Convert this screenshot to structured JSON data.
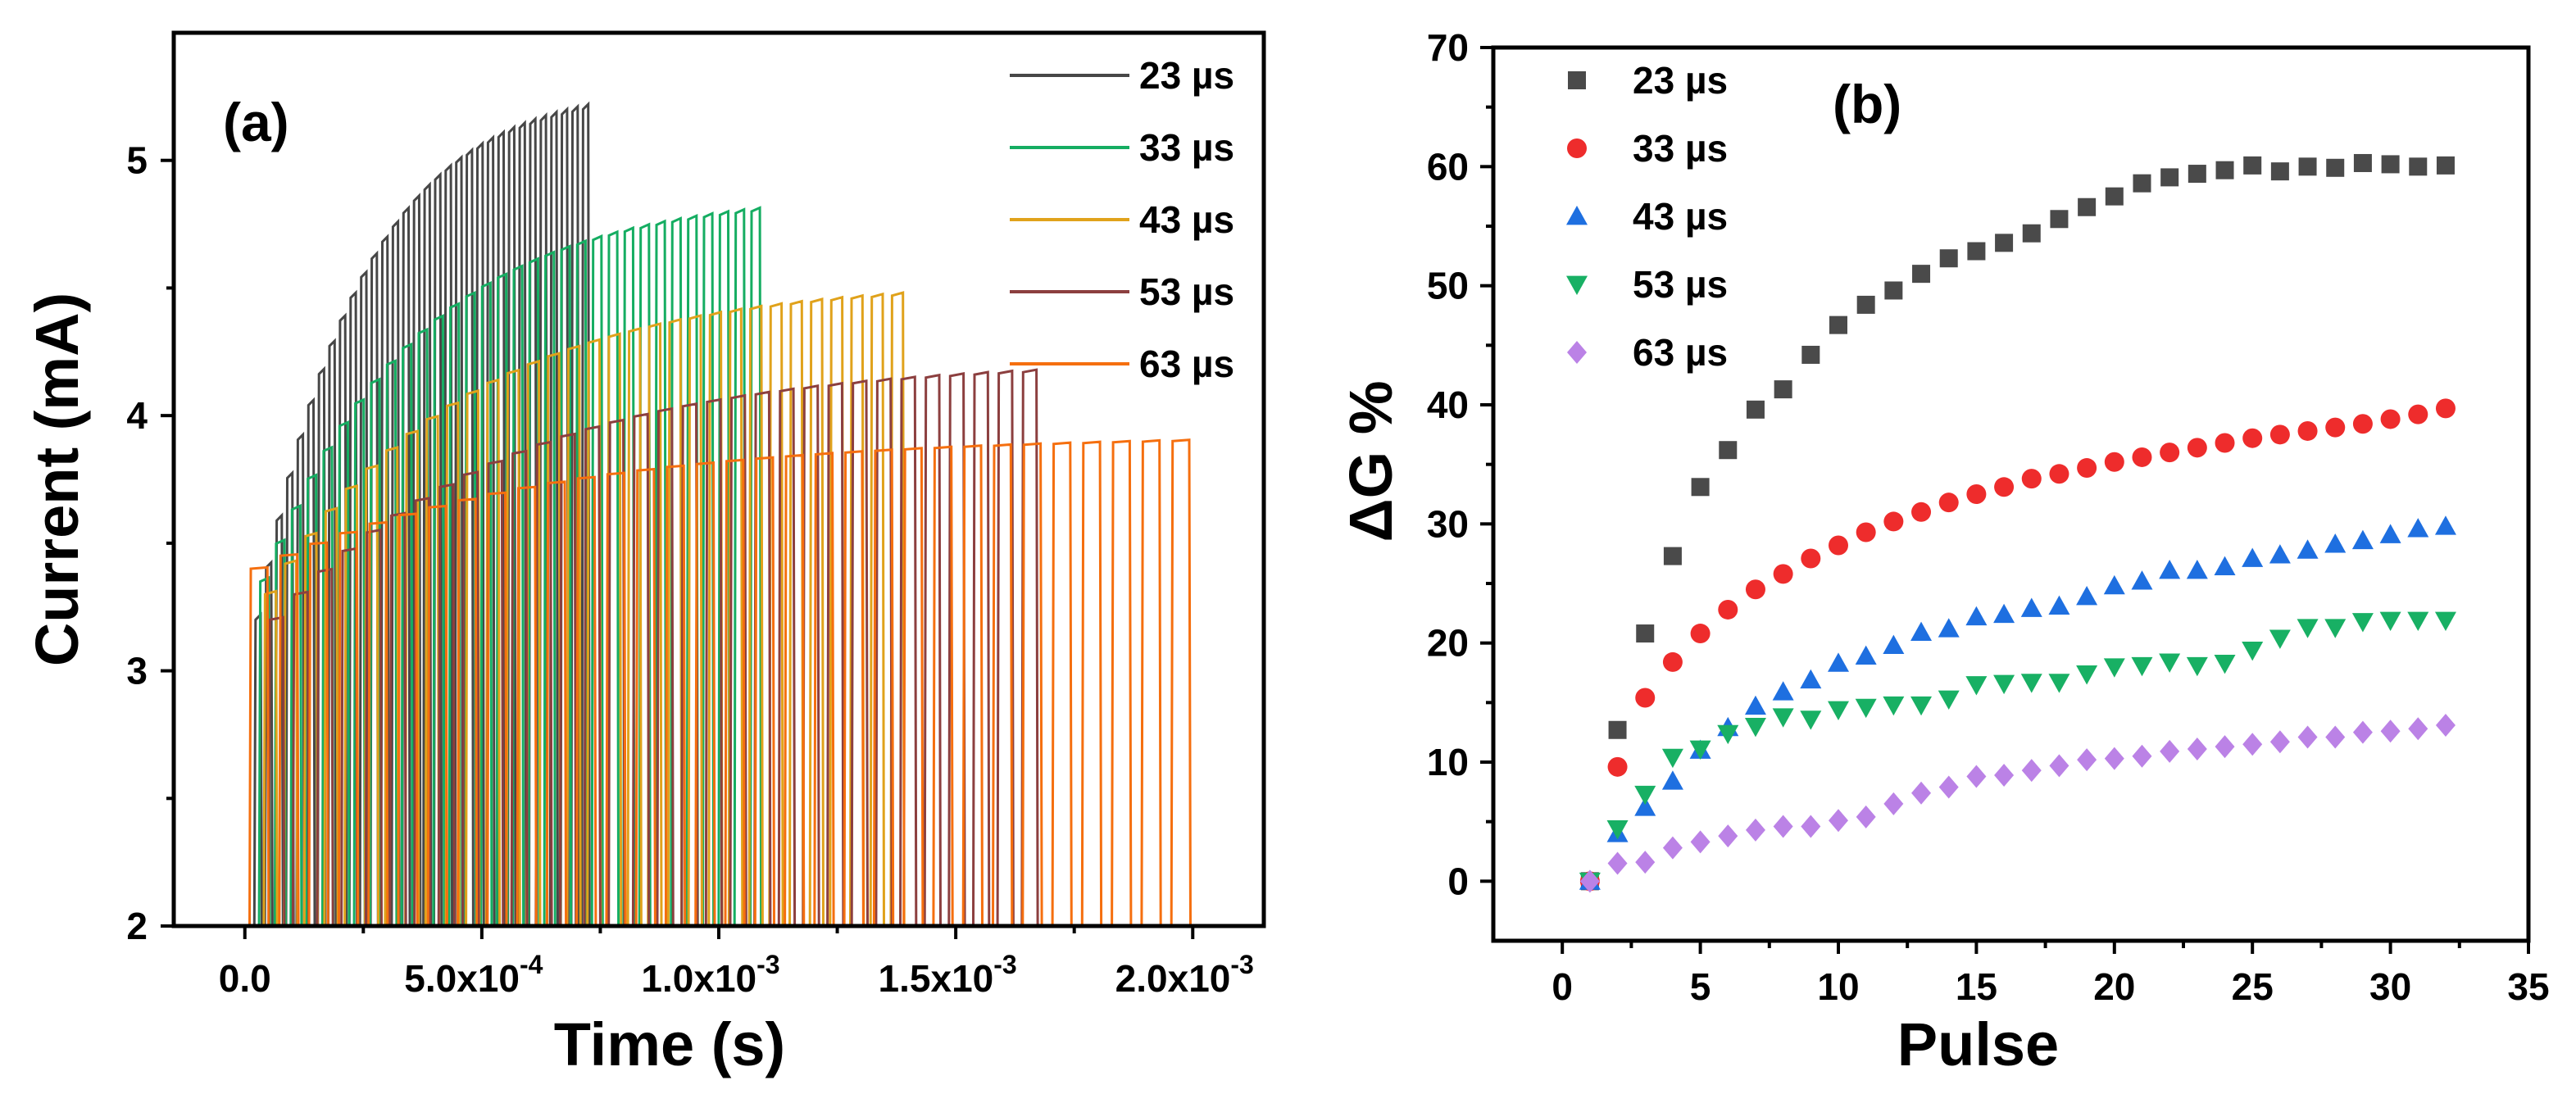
{
  "colors": {
    "s23": "#474747",
    "s33": "#15ad62",
    "s43": "#e0a21b",
    "s53": "#8c3f3f",
    "s63": "#f56f0f",
    "b23": "#4a4a4a",
    "b33": "#ee2c2c",
    "b43": "#1e6fe0",
    "b53": "#18b064",
    "b63": "#bb82e6"
  },
  "chart_data": [
    {
      "type": "line",
      "panel_label": "(a)",
      "xlabel": "Time (s)",
      "ylabel": "Current (mA)",
      "xlim": [
        -0.00015,
        0.00215
      ],
      "ylim": [
        2,
        5.5
      ],
      "xticks": [
        {
          "value": 0,
          "label": "0.0"
        },
        {
          "value": 0.0005,
          "label": "5.0x10",
          "exp": "-4"
        },
        {
          "value": 0.001,
          "label": "1.0x10",
          "exp": "-3"
        },
        {
          "value": 0.0015,
          "label": "1.5x10",
          "exp": "-3"
        },
        {
          "value": 0.002,
          "label": "2.0x10",
          "exp": "-3"
        }
      ],
      "yticks": [
        {
          "value": 2,
          "label": "2"
        },
        {
          "value": 3,
          "label": "3"
        },
        {
          "value": 4,
          "label": "4"
        },
        {
          "value": 5,
          "label": "5"
        }
      ],
      "legend_position": "top-right",
      "series": [
        {
          "name": "23 µs",
          "color_key": "s23",
          "t_start": 2e-05,
          "t_end": 0.00072,
          "pulses": 32,
          "i_start": 3.2,
          "i_end": 5.2
        },
        {
          "name": "33 µs",
          "color_key": "s33",
          "t_start": 3e-05,
          "t_end": 0.00108,
          "pulses": 32,
          "i_start": 3.35,
          "i_end": 4.8
        },
        {
          "name": "43 µs",
          "color_key": "s43",
          "t_start": 4e-05,
          "t_end": 0.00138,
          "pulses": 32,
          "i_start": 3.3,
          "i_end": 4.47
        },
        {
          "name": "53 µs",
          "color_key": "s53",
          "t_start": 5e-05,
          "t_end": 0.00166,
          "pulses": 32,
          "i_start": 3.2,
          "i_end": 4.17
        },
        {
          "name": "63 µs",
          "color_key": "s63",
          "t_start": 1e-05,
          "t_end": 0.00198,
          "pulses": 32,
          "i_start": 3.4,
          "i_end": 3.9
        }
      ]
    },
    {
      "type": "scatter",
      "panel_label": "(b)",
      "xlabel": "Pulse",
      "ylabel": "ΔG %",
      "xlim": [
        -2.5,
        35
      ],
      "ylim": [
        -5,
        70
      ],
      "xticks": [
        0,
        5,
        10,
        15,
        20,
        25,
        30,
        35
      ],
      "yticks": [
        0,
        10,
        20,
        30,
        40,
        50,
        60,
        70
      ],
      "legend_position": "top-left",
      "x": [
        1,
        2,
        3,
        4,
        5,
        6,
        7,
        8,
        9,
        10,
        11,
        12,
        13,
        14,
        15,
        16,
        17,
        18,
        19,
        20,
        21,
        22,
        23,
        24,
        25,
        26,
        27,
        28,
        29,
        30,
        31,
        32
      ],
      "series": [
        {
          "name": "23 µs",
          "marker": "square",
          "color_key": "b23",
          "values": [
            0,
            12.7,
            20.8,
            27.3,
            33.1,
            36.2,
            39.6,
            41.3,
            44.2,
            46.7,
            48.4,
            49.6,
            51.0,
            52.3,
            52.9,
            53.6,
            54.4,
            55.6,
            56.6,
            57.5,
            58.6,
            59.1,
            59.4,
            59.7,
            60.1,
            59.6,
            60.0,
            59.9,
            60.3,
            60.2,
            60.0,
            60.1
          ]
        },
        {
          "name": "33 µs",
          "marker": "circle",
          "color_key": "b33",
          "values": [
            0,
            9.6,
            15.4,
            18.4,
            20.8,
            22.8,
            24.5,
            25.8,
            27.1,
            28.2,
            29.3,
            30.2,
            31.0,
            31.8,
            32.5,
            33.1,
            33.8,
            34.2,
            34.7,
            35.2,
            35.6,
            36.0,
            36.4,
            36.8,
            37.2,
            37.5,
            37.8,
            38.1,
            38.4,
            38.8,
            39.2,
            39.7
          ]
        },
        {
          "name": "43 µs",
          "marker": "triangle-up",
          "color_key": "b43",
          "values": [
            0,
            4.0,
            6.2,
            8.4,
            11.0,
            12.9,
            14.7,
            15.9,
            16.9,
            18.3,
            18.9,
            19.8,
            20.9,
            21.2,
            22.2,
            22.4,
            22.9,
            23.1,
            23.9,
            24.8,
            25.2,
            26.1,
            26.1,
            26.4,
            27.1,
            27.4,
            27.8,
            28.3,
            28.6,
            29.1,
            29.6,
            29.8
          ]
        },
        {
          "name": "53 µs",
          "marker": "triangle-down",
          "color_key": "b53",
          "values": [
            0,
            4.4,
            7.3,
            10.4,
            11.1,
            12.4,
            13.0,
            13.8,
            13.6,
            14.4,
            14.6,
            14.8,
            14.8,
            15.3,
            16.5,
            16.6,
            16.7,
            16.7,
            17.4,
            18.0,
            18.1,
            18.4,
            18.1,
            18.3,
            19.4,
            20.4,
            21.3,
            21.3,
            21.8,
            21.9,
            21.9,
            21.9
          ]
        },
        {
          "name": "63 µs",
          "marker": "diamond",
          "color_key": "b63",
          "values": [
            0,
            1.5,
            1.6,
            2.8,
            3.3,
            3.8,
            4.3,
            4.6,
            4.6,
            5.1,
            5.4,
            6.5,
            7.4,
            7.9,
            8.8,
            8.9,
            9.3,
            9.7,
            10.2,
            10.3,
            10.5,
            10.9,
            11.1,
            11.3,
            11.5,
            11.7,
            12.1,
            12.1,
            12.5,
            12.6,
            12.8,
            13.1
          ]
        }
      ]
    }
  ]
}
